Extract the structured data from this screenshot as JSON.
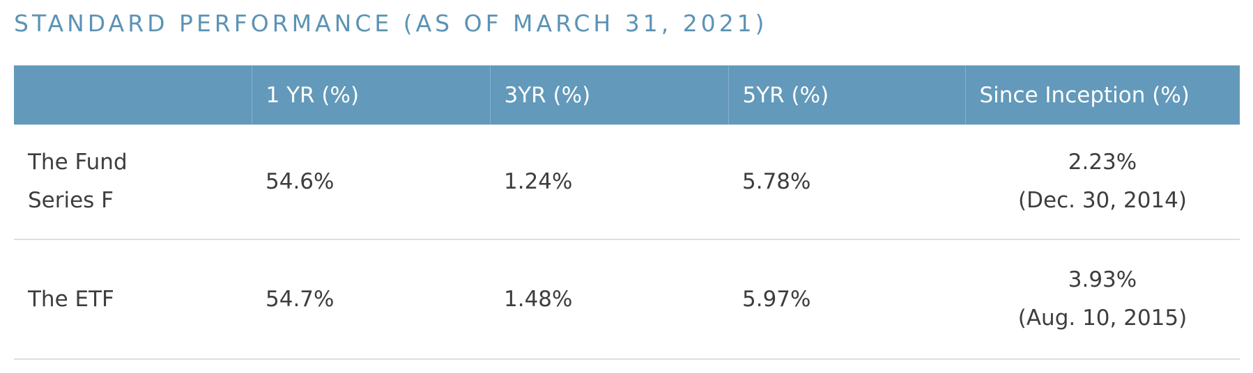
{
  "header": {
    "title": "STANDARD PERFORMANCE (AS OF MARCH 31, 2021)"
  },
  "table": {
    "columns": [
      "1 YR (%)",
      "3YR (%)",
      "5YR (%)",
      "Since Inception (%)"
    ],
    "rows": [
      {
        "name": "The Fund Series F",
        "values": [
          "54.6%",
          "1.24%",
          "5.78%"
        ],
        "inception": {
          "return": "2.23%",
          "date": "(Dec. 30, 2014)"
        }
      },
      {
        "name": "The ETF",
        "values": [
          "54.7%",
          "1.48%",
          "5.97%"
        ],
        "inception": {
          "return": "3.93%",
          "date": "(Aug. 10, 2015)"
        }
      }
    ]
  }
}
